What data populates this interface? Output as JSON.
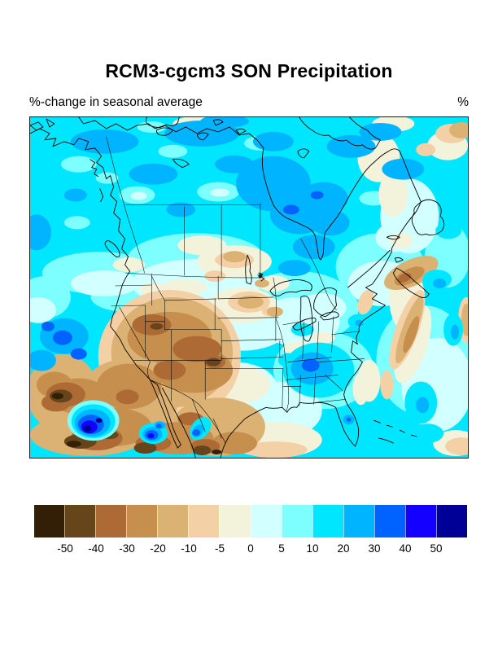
{
  "figure": {
    "title": "RCM3-cgcm3 SON Precipitation",
    "subtitle": "%-change in seasonal average",
    "unit_label": "%"
  },
  "colorbar": {
    "tick_labels": [
      "-50",
      "-40",
      "-30",
      "-20",
      "-10",
      "-5",
      "0",
      "5",
      "10",
      "20",
      "30",
      "40",
      "50"
    ],
    "segment_colors": [
      "#331F05",
      "#66451A",
      "#AD6A35",
      "#C68F4D",
      "#DBB273",
      "#F4D0A7",
      "#F3F3DC",
      "#D2FFFF",
      "#7DFFFF",
      "#00E6FF",
      "#00B4FF",
      "#0063FF",
      "#1400FF",
      "#000096"
    ]
  },
  "chart_data": {
    "type": "heatmap",
    "subtype": "filled-contour-map",
    "title": "RCM3-cgcm3 SON Precipitation",
    "subtitle": "%-change in seasonal average",
    "units": "%",
    "region": "North America (Alaska, Canada, contiguous US, Mexico, adjacent oceans)",
    "legend_position": "bottom",
    "colorbar_tick_values": [
      -50,
      -40,
      -30,
      -20,
      -10,
      -5,
      0,
      5,
      10,
      20,
      30,
      40,
      50
    ],
    "colorbar_colors": [
      "#331F05",
      "#66451A",
      "#AD6A35",
      "#C68F4D",
      "#DBB273",
      "#F4D0A7",
      "#F3F3DC",
      "#D2FFFF",
      "#7DFFFF",
      "#00E6FF",
      "#00B4FF",
      "#0063FF",
      "#1400FF",
      "#000096"
    ],
    "notable_patterns": [
      "Widespread 10-30% increases (cyan/blue) across Alaska and most of Canada, strongest west and southeast of Hudson Bay",
      "Local increases exceeding 40-50% (dark blue/navy cores) over the subtropical Pacific southwest of Baja California",
      "20-40% increases over Alabama/Georgia in the southeastern US and a small maximum over Florida",
      "10-40% decreases (tan/brown) over the US Southwest, Great Basin, Rockies and northern Mexico, darkest (<-50%) near the bottom-left",
      "Drying band (-10 to -30%) offshore of the US Atlantic coast and over Nova Scotia, plus tan patches near Newfoundland and the map's top-right corner",
      "Near-zero change (cream/pale) over the northern Great Plains, Canadian Prairies and Gulf of Mexico"
    ]
  }
}
